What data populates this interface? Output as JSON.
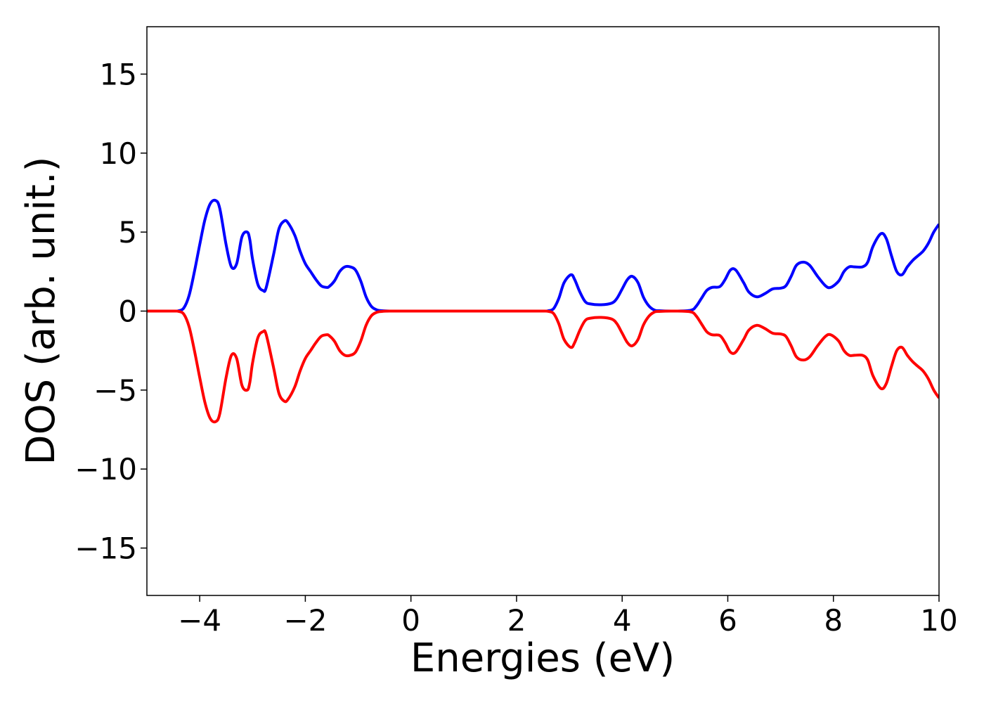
{
  "chart_data": {
    "type": "line",
    "title": "",
    "xlabel": "Energies (eV)",
    "ylabel": "DOS (arb. unit.)",
    "xlim": [
      -5,
      10
    ],
    "ylim": [
      -18,
      18
    ],
    "xticks": [
      -4,
      -2,
      0,
      2,
      4,
      6,
      8,
      10
    ],
    "xtick_labels": [
      "−4",
      "−2",
      "0",
      "2",
      "4",
      "6",
      "8",
      "10"
    ],
    "yticks": [
      -15,
      -10,
      -5,
      0,
      5,
      10,
      15
    ],
    "ytick_labels": [
      "−15",
      "−10",
      "−5",
      "0",
      "5",
      "10",
      "15"
    ],
    "grid": false,
    "legend": "none",
    "colors": {
      "up": "#0000ff",
      "down": "#ff0000"
    },
    "series": [
      {
        "color": "#0000ff",
        "x": [
          -5,
          -4.5,
          -4.4,
          -4.3,
          -4.2,
          -4.1,
          -4.0,
          -3.9,
          -3.8,
          -3.7,
          -3.62,
          -3.5,
          -3.4,
          -3.3,
          -3.2,
          -3.1,
          -3.05,
          -3.0,
          -2.9,
          -2.8,
          -2.74,
          -2.6,
          -2.5,
          -2.4,
          -2.33,
          -2.2,
          -2.1,
          -2.0,
          -1.9,
          -1.8,
          -1.7,
          -1.6,
          -1.55,
          -1.45,
          -1.35,
          -1.25,
          -1.15,
          -1.05,
          -0.95,
          -0.85,
          -0.75,
          -0.65,
          -0.55,
          -0.4,
          0,
          1,
          2,
          2.5,
          2.6,
          2.7,
          2.8,
          2.9,
          3.03,
          3.1,
          3.2,
          3.3,
          3.4,
          3.6,
          3.8,
          3.9,
          4.0,
          4.1,
          4.19,
          4.3,
          4.4,
          4.5,
          4.6,
          4.7,
          5.0,
          5.3,
          5.4,
          5.5,
          5.6,
          5.7,
          5.85,
          5.95,
          6.05,
          6.15,
          6.3,
          6.4,
          6.55,
          6.7,
          6.85,
          7.0,
          7.1,
          7.2,
          7.3,
          7.43,
          7.55,
          7.7,
          7.85,
          7.95,
          8.1,
          8.2,
          8.3,
          8.4,
          8.55,
          8.65,
          8.75,
          8.9,
          9.0,
          9.1,
          9.2,
          9.3,
          9.4,
          9.5,
          9.6,
          9.7,
          9.8,
          9.9,
          10.0
        ],
        "y": [
          0,
          0,
          0.02,
          0.2,
          1.0,
          2.5,
          4.2,
          5.8,
          6.8,
          7.0,
          6.5,
          4.2,
          2.8,
          3.0,
          4.7,
          5.0,
          4.5,
          3.3,
          1.7,
          1.3,
          1.5,
          3.6,
          5.2,
          5.7,
          5.6,
          4.8,
          3.8,
          3.0,
          2.5,
          2.0,
          1.6,
          1.5,
          1.55,
          1.9,
          2.5,
          2.8,
          2.8,
          2.6,
          1.9,
          0.9,
          0.3,
          0.08,
          0.02,
          0,
          0,
          0,
          0,
          0,
          0.02,
          0.15,
          0.8,
          1.8,
          2.3,
          2.0,
          1.2,
          0.6,
          0.45,
          0.4,
          0.5,
          0.8,
          1.4,
          2.0,
          2.2,
          1.8,
          0.9,
          0.35,
          0.08,
          0.02,
          0,
          0.05,
          0.3,
          0.8,
          1.3,
          1.5,
          1.55,
          2.0,
          2.6,
          2.6,
          1.8,
          1.2,
          0.9,
          1.1,
          1.4,
          1.45,
          1.6,
          2.2,
          2.9,
          3.1,
          2.9,
          2.2,
          1.6,
          1.5,
          1.9,
          2.5,
          2.8,
          2.8,
          2.8,
          3.1,
          4.1,
          4.9,
          4.6,
          3.5,
          2.5,
          2.3,
          2.8,
          3.2,
          3.5,
          3.8,
          4.3,
          5.0,
          5.5
        ]
      },
      {
        "color": "#ff0000",
        "x": [
          -5,
          -4.5,
          -4.4,
          -4.3,
          -4.2,
          -4.1,
          -4.0,
          -3.9,
          -3.8,
          -3.7,
          -3.62,
          -3.5,
          -3.4,
          -3.3,
          -3.2,
          -3.1,
          -3.05,
          -3.0,
          -2.9,
          -2.8,
          -2.74,
          -2.6,
          -2.5,
          -2.4,
          -2.33,
          -2.2,
          -2.1,
          -2.0,
          -1.9,
          -1.8,
          -1.7,
          -1.6,
          -1.55,
          -1.45,
          -1.35,
          -1.25,
          -1.15,
          -1.05,
          -0.95,
          -0.85,
          -0.75,
          -0.65,
          -0.55,
          -0.4,
          0,
          1,
          2,
          2.5,
          2.6,
          2.7,
          2.8,
          2.9,
          3.03,
          3.1,
          3.2,
          3.3,
          3.4,
          3.6,
          3.8,
          3.9,
          4.0,
          4.1,
          4.19,
          4.3,
          4.4,
          4.5,
          4.6,
          4.7,
          5.0,
          5.3,
          5.4,
          5.5,
          5.6,
          5.7,
          5.85,
          5.95,
          6.05,
          6.15,
          6.3,
          6.4,
          6.55,
          6.7,
          6.85,
          7.0,
          7.1,
          7.2,
          7.3,
          7.43,
          7.55,
          7.7,
          7.85,
          7.95,
          8.1,
          8.2,
          8.3,
          8.4,
          8.55,
          8.65,
          8.75,
          8.9,
          9.0,
          9.1,
          9.2,
          9.3,
          9.4,
          9.5,
          9.6,
          9.7,
          9.8,
          9.9,
          10.0
        ],
        "y": [
          0,
          0,
          -0.02,
          -0.2,
          -1.0,
          -2.5,
          -4.2,
          -5.8,
          -6.8,
          -7.0,
          -6.5,
          -4.2,
          -2.8,
          -3.0,
          -4.7,
          -5.0,
          -4.5,
          -3.3,
          -1.7,
          -1.3,
          -1.5,
          -3.6,
          -5.2,
          -5.7,
          -5.6,
          -4.8,
          -3.8,
          -3.0,
          -2.5,
          -2.0,
          -1.6,
          -1.5,
          -1.55,
          -1.9,
          -2.5,
          -2.8,
          -2.8,
          -2.6,
          -1.9,
          -0.9,
          -0.3,
          -0.08,
          -0.02,
          0,
          0,
          0,
          0,
          0,
          -0.02,
          -0.15,
          -0.8,
          -1.8,
          -2.3,
          -2.0,
          -1.2,
          -0.6,
          -0.45,
          -0.4,
          -0.5,
          -0.8,
          -1.4,
          -2.0,
          -2.2,
          -1.8,
          -0.9,
          -0.35,
          -0.08,
          -0.02,
          0,
          -0.05,
          -0.3,
          -0.8,
          -1.3,
          -1.5,
          -1.55,
          -2.0,
          -2.6,
          -2.6,
          -1.8,
          -1.2,
          -0.9,
          -1.1,
          -1.4,
          -1.45,
          -1.6,
          -2.2,
          -2.9,
          -3.1,
          -2.9,
          -2.2,
          -1.6,
          -1.5,
          -1.9,
          -2.5,
          -2.8,
          -2.8,
          -2.8,
          -3.1,
          -4.1,
          -4.9,
          -4.6,
          -3.5,
          -2.5,
          -2.3,
          -2.8,
          -3.2,
          -3.5,
          -3.8,
          -4.3,
          -5.0,
          -5.5
        ]
      }
    ]
  }
}
